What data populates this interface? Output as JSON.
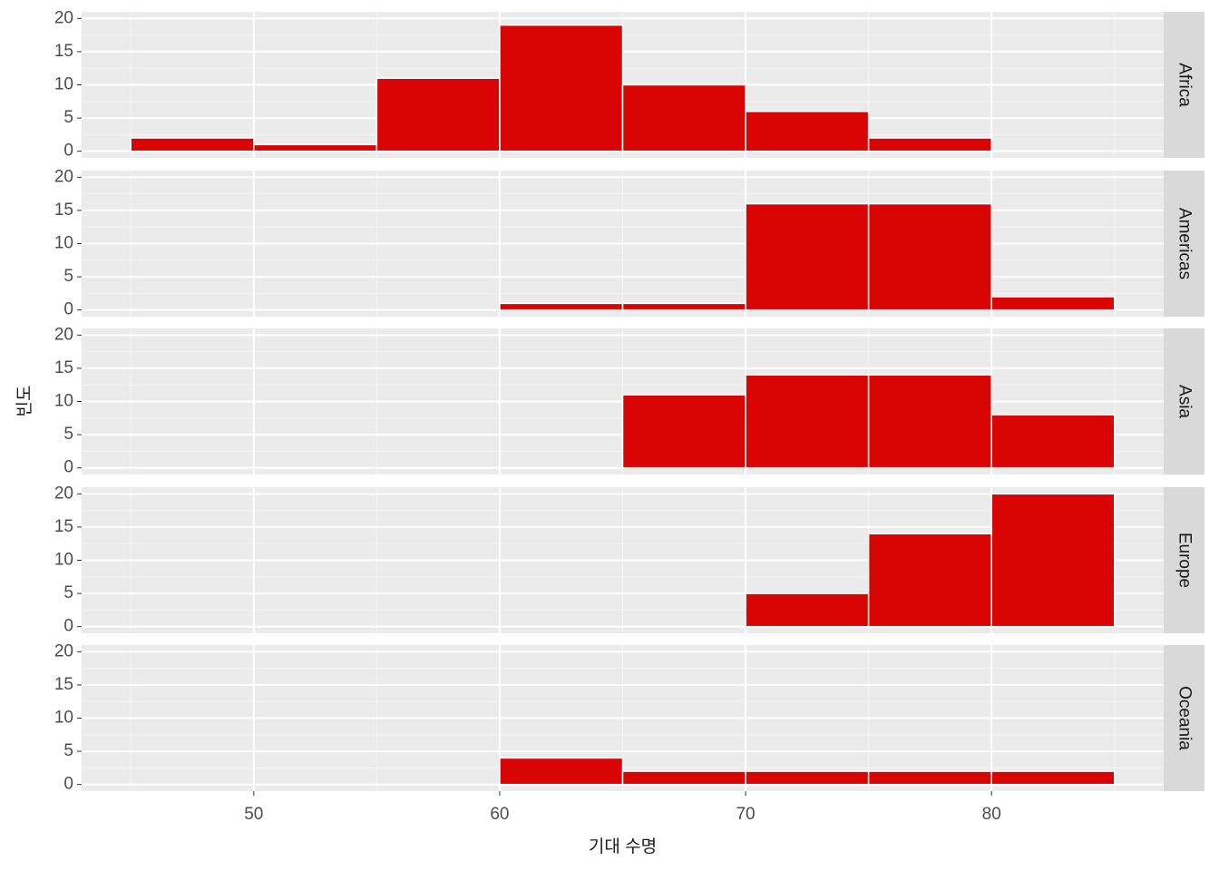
{
  "chart_data": [
    {
      "type": "histogram",
      "facet": "Africa",
      "bins": [
        45,
        50,
        55,
        60,
        65,
        70,
        75,
        80,
        85
      ],
      "values": [
        2,
        1,
        11,
        19,
        10,
        6,
        2,
        0
      ],
      "color": "#d90504",
      "xlim": [
        43,
        87
      ],
      "xticks": [
        50,
        60,
        70,
        80
      ],
      "ylim": [
        -1,
        21
      ],
      "yticks": [
        0,
        5,
        10,
        15,
        20
      ],
      "grid": true
    },
    {
      "type": "histogram",
      "facet": "Americas",
      "bins": [
        45,
        50,
        55,
        60,
        65,
        70,
        75,
        80,
        85
      ],
      "values": [
        0,
        0,
        0,
        1,
        1,
        16,
        16,
        2
      ],
      "color": "#d90504",
      "xlim": [
        43,
        87
      ],
      "xticks": [
        50,
        60,
        70,
        80
      ],
      "ylim": [
        -1,
        21
      ],
      "yticks": [
        0,
        5,
        10,
        15,
        20
      ],
      "grid": true
    },
    {
      "type": "histogram",
      "facet": "Asia",
      "bins": [
        45,
        50,
        55,
        60,
        65,
        70,
        75,
        80,
        85
      ],
      "values": [
        0,
        0,
        0,
        0,
        11,
        14,
        14,
        8
      ],
      "color": "#d90504",
      "xlim": [
        43,
        87
      ],
      "xticks": [
        50,
        60,
        70,
        80
      ],
      "ylim": [
        -1,
        21
      ],
      "yticks": [
        0,
        5,
        10,
        15,
        20
      ],
      "grid": true,
      "ylabel": "빈도"
    },
    {
      "type": "histogram",
      "facet": "Europe",
      "bins": [
        45,
        50,
        55,
        60,
        65,
        70,
        75,
        80,
        85
      ],
      "values": [
        0,
        0,
        0,
        0,
        0,
        5,
        14,
        20
      ],
      "color": "#d90504",
      "xlim": [
        43,
        87
      ],
      "xticks": [
        50,
        60,
        70,
        80
      ],
      "ylim": [
        -1,
        21
      ],
      "yticks": [
        0,
        5,
        10,
        15,
        20
      ],
      "grid": true
    },
    {
      "type": "histogram",
      "facet": "Oceania",
      "bins": [
        45,
        50,
        55,
        60,
        65,
        70,
        75,
        80,
        85
      ],
      "values": [
        0,
        0,
        0,
        4,
        2,
        2,
        2,
        2
      ],
      "color": "#d90504",
      "xlim": [
        43,
        87
      ],
      "xticks": [
        50,
        60,
        70,
        80
      ],
      "ylim": [
        -1,
        21
      ],
      "yticks": [
        0,
        5,
        10,
        15,
        20
      ],
      "grid": true,
      "xlabel": "기대 수명"
    }
  ]
}
